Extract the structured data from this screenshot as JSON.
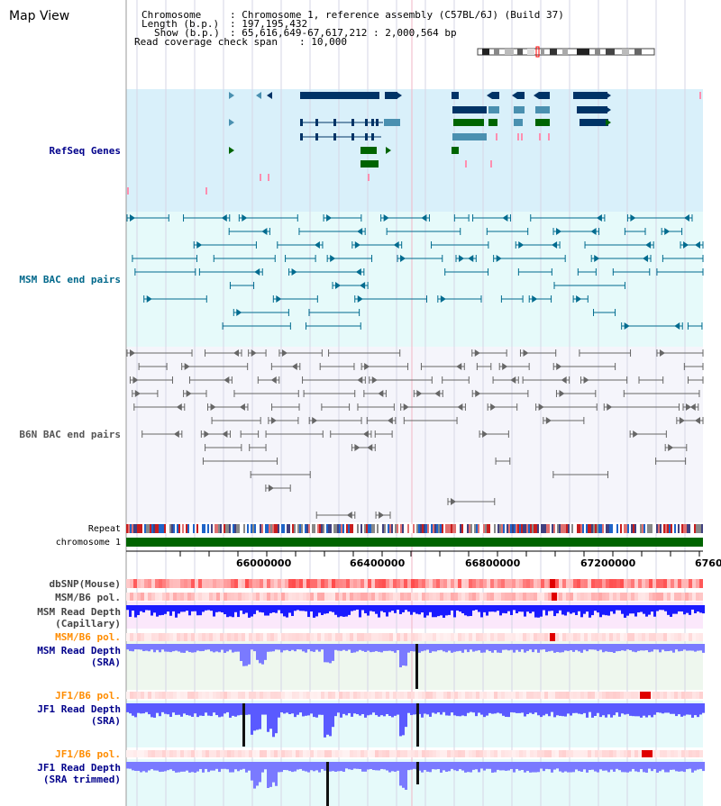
{
  "view_title": "Map View",
  "info": {
    "chromosome_key": "Chromosome",
    "chromosome_value": "Chromosome 1, reference assembly (C57BL/6J) (Build 37)",
    "length_key": "Length (b.p.)",
    "length_value": "197,195,432",
    "show_key": "Show (b.p.)",
    "show_value": "65,616,649-67,617,212 : 2,000,564 bp",
    "span_key": "Read coverage check span",
    "span_value": "10,000"
  },
  "tracks": {
    "refseq": {
      "label": "RefSeq Genes",
      "color": "#00008b"
    },
    "msm_bac": {
      "label": "MSM BAC end pairs",
      "color": "#00688b"
    },
    "b6n_bac": {
      "label": "B6N BAC end pairs",
      "color": "#555555"
    },
    "repeat": {
      "label": "Repeat"
    },
    "chromosome": {
      "label": "chromosome 1",
      "color": "#006400"
    },
    "dbsnp": {
      "label": "dbSNP(Mouse)",
      "color": "#444444"
    },
    "msm_b6_pol": {
      "label": "MSM/B6 pol.",
      "color": "#444444"
    },
    "msm_depth_cap": {
      "label": "MSM Read Depth\n(Capillary)",
      "color": "#444444"
    },
    "msm_b6_pol2": {
      "label": "MSM/B6 pol.",
      "color": "#ff8c00"
    },
    "msm_depth_sra": {
      "label": "MSM Read Depth\n(SRA)",
      "color": "#00008b"
    },
    "jf1_b6_pol": {
      "label": "JF1/B6 pol.",
      "color": "#ff8c00"
    },
    "jf1_depth_sra": {
      "label": "JF1 Read Depth\n(SRA)",
      "color": "#00008b"
    },
    "jf1_b6_pol2": {
      "label": "JF1/B6 pol.",
      "color": "#ff8c00"
    },
    "jf1_depth_trim": {
      "label": "JF1 Read Depth\n(SRA trimmed)",
      "color": "#00008b"
    }
  },
  "axis": {
    "ticks": [
      "66000000",
      "66400000",
      "66800000",
      "67200000",
      "6760"
    ]
  },
  "colors": {
    "refseq_bg": "#d9f0fa",
    "msm_bg": "#e6fafa",
    "b6n_bg": "#f5f5fb",
    "gene_dark": "#003366",
    "gene_mid": "#4a90b0",
    "gene_green": "#006400",
    "msm_line": "#006b8f",
    "b6n_line": "#666666",
    "depth_blue": "#1a1aff",
    "pol_red": "#ff3333"
  }
}
